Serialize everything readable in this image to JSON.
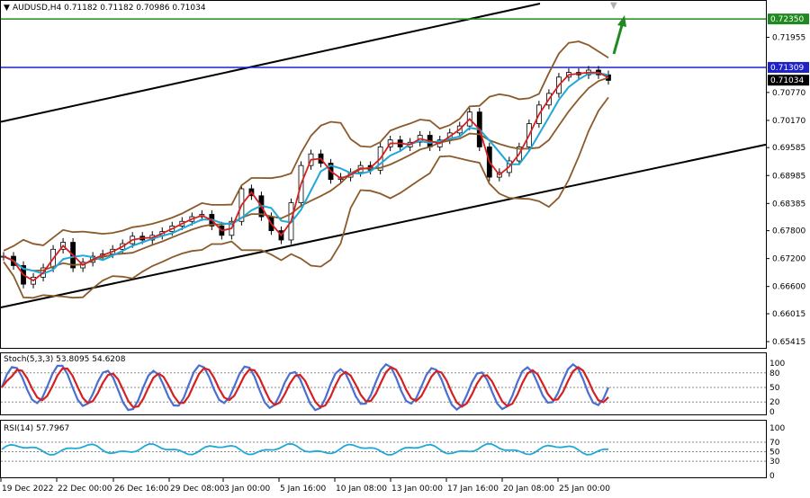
{
  "header": {
    "symbol_line": "AUDUSD,H4  0.71182 0.71182 0.70986 0.71034"
  },
  "price_scale": {
    "ticks": [
      "0.71955",
      "0.70770",
      "0.70170",
      "0.69585",
      "0.68985",
      "0.68385",
      "0.67800",
      "0.67200",
      "0.66600",
      "0.66015",
      "0.65415"
    ],
    "badges": [
      {
        "value": "0.72350",
        "bg": "#1f8a1f",
        "fg": "#ffffff"
      },
      {
        "value": "0.71309",
        "bg": "#1e22c8",
        "fg": "#ffffff"
      },
      {
        "value": "0.71034",
        "bg": "#000000",
        "fg": "#ffffff"
      }
    ]
  },
  "stoch": {
    "label": "Stoch(5,3,3) 53.8095 54.6208",
    "levels": [
      "100",
      "80",
      "50",
      "20",
      "0"
    ]
  },
  "rsi": {
    "label": "RSI(14) 57.7967",
    "levels": [
      "100",
      "70",
      "50",
      "30",
      "0"
    ]
  },
  "time_axis": [
    "19 Dec 2022",
    "22 Dec 00:00",
    "26 Dec 16:00",
    "29 Dec 08:00",
    "3 Jan 00:00",
    "5 Jan 16:00",
    "10 Jan 08:00",
    "13 Jan 00:00",
    "17 Jan 16:00",
    "20 Jan 08:00",
    "25 Jan 00:00"
  ],
  "colors": {
    "accent_green": "#1f8a1f",
    "accent_blue": "#1e22c8",
    "bollinger": "#8b5a2b",
    "ma_red": "#d42020",
    "ma_cyan": "#1fa8d8",
    "stoch_blue": "#4a6fd0",
    "stoch_red": "#d42020",
    "rsi": "#1fa8d8"
  },
  "chart_data": {
    "type": "line",
    "symbol": "AUDUSD",
    "timeframe": "H4",
    "title": "AUDUSD,H4  0.71182 0.71182 0.70986 0.71034",
    "ylim": [
      0.653,
      0.7268
    ],
    "resistance": 0.7235,
    "horizontal_level": 0.71309,
    "last_price": 0.71034,
    "series": [
      {
        "values": [
          0.6725,
          0.6705,
          0.6665,
          0.668,
          0.67,
          0.674,
          0.6755,
          0.67,
          0.6712,
          0.6725,
          0.673,
          0.674,
          0.6752,
          0.6768,
          0.676,
          0.677,
          0.6778,
          0.679,
          0.68,
          0.681,
          0.6815,
          0.679,
          0.677,
          0.68,
          0.687,
          0.6855,
          0.681,
          0.678,
          0.676,
          0.684,
          0.692,
          0.6945,
          0.6925,
          0.689,
          0.6895,
          0.6905,
          0.692,
          0.691,
          0.696,
          0.6975,
          0.696,
          0.697,
          0.6985,
          0.696,
          0.6975,
          0.699,
          0.7005,
          0.7035,
          0.696,
          0.6895,
          0.6905,
          0.693,
          0.696,
          0.701,
          0.705,
          0.7075,
          0.711,
          0.712,
          0.7115,
          0.7125,
          0.7115,
          0.7103
        ]
      }
    ]
  }
}
